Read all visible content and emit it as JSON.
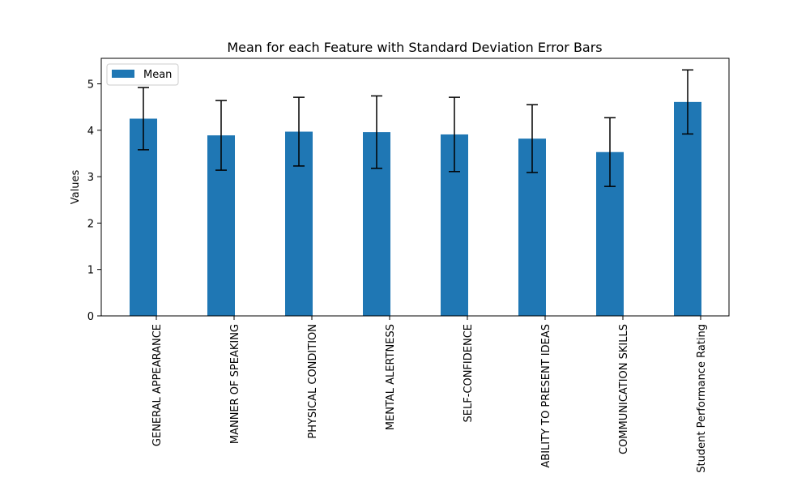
{
  "chart_data": {
    "type": "bar",
    "title": "Mean for each Feature with Standard Deviation Error Bars",
    "xlabel": "",
    "ylabel": "Values",
    "ylim": [
      0,
      5.55
    ],
    "yticks": [
      0,
      1,
      2,
      3,
      4,
      5
    ],
    "grid": false,
    "legend_position": "top-left",
    "categories": [
      "GENERAL APPEARANCE",
      "MANNER OF SPEAKING",
      "PHYSICAL CONDITION",
      "MENTAL ALERTNESS",
      "SELF-CONFIDENCE",
      "ABILITY TO PRESENT IDEAS",
      "COMMUNICATION SKILLS",
      "Student Performance Rating"
    ],
    "series": [
      {
        "name": "Mean",
        "color": "#1f77b4",
        "values": [
          4.25,
          3.89,
          3.97,
          3.96,
          3.91,
          3.82,
          3.53,
          4.61
        ],
        "error": [
          0.67,
          0.75,
          0.74,
          0.78,
          0.8,
          0.73,
          0.74,
          0.69
        ]
      }
    ]
  }
}
